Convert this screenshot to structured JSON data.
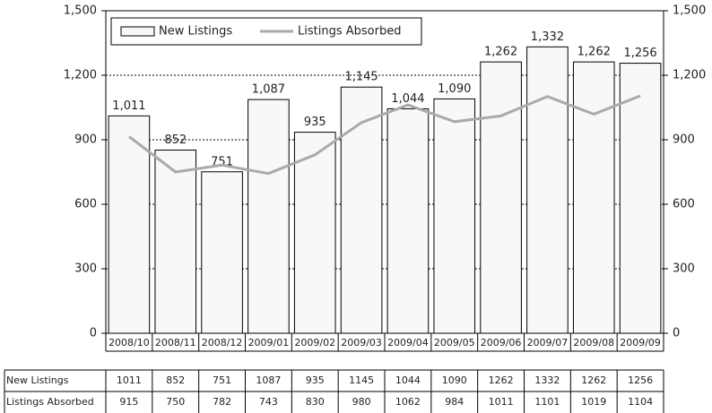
{
  "chart_data": {
    "type": "bar",
    "categories": [
      "2008/10",
      "2008/11",
      "2008/12",
      "2009/01",
      "2009/02",
      "2009/03",
      "2009/04",
      "2009/05",
      "2009/06",
      "2009/07",
      "2009/08",
      "2009/09"
    ],
    "series": [
      {
        "name": "New Listings",
        "type": "bar",
        "color": "#f8f8f8",
        "values": [
          1011,
          852,
          751,
          1087,
          935,
          1145,
          1044,
          1090,
          1262,
          1332,
          1262,
          1256
        ],
        "value_labels": [
          "1,011",
          "852",
          "751",
          "1,087",
          "935",
          "1,145",
          "1,044",
          "1,090",
          "1,262",
          "1,332",
          "1,262",
          "1,256"
        ]
      },
      {
        "name": "Listings Absorbed",
        "type": "line",
        "color": "#aaaaaa",
        "values": [
          915,
          750,
          782,
          743,
          830,
          980,
          1062,
          984,
          1011,
          1101,
          1019,
          1104
        ]
      }
    ],
    "ylim": [
      0,
      1500
    ],
    "yticks": [
      0,
      300,
      600,
      900,
      {
        "value": 1200,
        "label": "1,200"
      },
      {
        "value": 1500,
        "label": "1,500"
      }
    ],
    "y2lim": [
      0,
      1500
    ],
    "y2ticks": [
      0,
      300,
      600,
      900,
      {
        "value": 1200,
        "label": "1,200"
      },
      {
        "value": 1500,
        "label": "1,500"
      }
    ],
    "grid": true,
    "legend": "top-left"
  }
}
